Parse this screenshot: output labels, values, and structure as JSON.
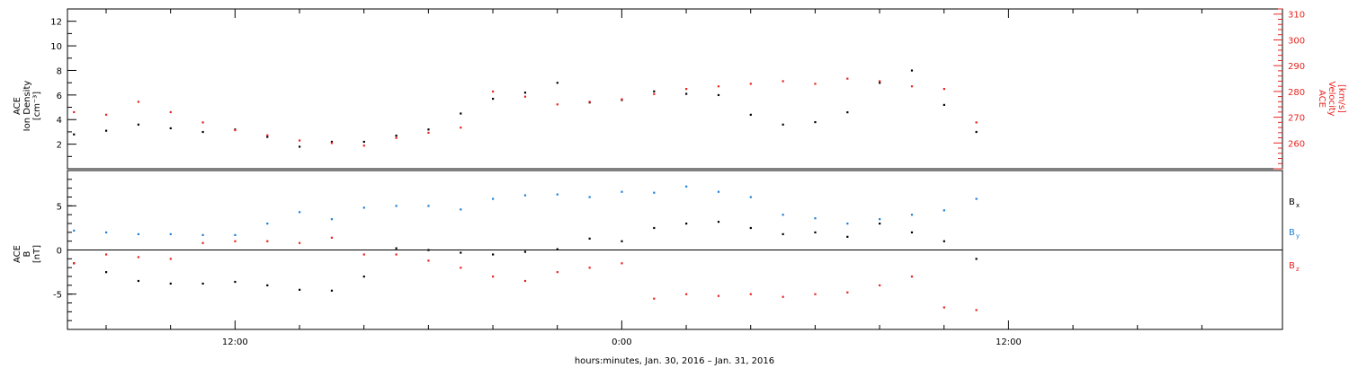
{
  "colors": {
    "black": "#000000",
    "red": "#e8231f",
    "blue": "#1e7fd6"
  },
  "x_axis": {
    "label": "hours:minutes, Jan. 30, 2016 – Jan. 31, 2016",
    "unit": "hours since Jan. 30, 2016 00:00",
    "range": [
      6.8,
      44.5
    ],
    "major_ticks": [
      {
        "x": 12,
        "label": "12:00"
      },
      {
        "x": 24,
        "label": "0:00"
      },
      {
        "x": 36,
        "label": "12:00"
      }
    ],
    "minor_ticks": [
      8,
      10,
      14,
      16,
      18,
      20,
      22,
      26,
      28,
      30,
      32,
      34,
      38,
      40,
      42
    ]
  },
  "top_panel": {
    "left_label": [
      "ACE",
      "Ion Density",
      "[cm⁻³]"
    ],
    "right_label": [
      "ACE",
      "Velocity",
      "[km/s]"
    ],
    "left_ylim": [
      0,
      13
    ],
    "left_ticks": [
      2,
      4,
      6,
      8,
      10,
      12
    ],
    "right_ylim": [
      250,
      312
    ],
    "right_ticks": [
      260,
      270,
      280,
      290,
      300,
      310
    ]
  },
  "bottom_panel": {
    "left_label": [
      "ACE",
      "B",
      "[nT]"
    ],
    "ylim": [
      -9,
      9
    ],
    "ticks": [
      -5,
      0,
      5
    ],
    "legend": [
      {
        "label": "B",
        "sub": "x",
        "color": "#000000"
      },
      {
        "label": "B",
        "sub": "y",
        "color": "#1e7fd6"
      },
      {
        "label": "B",
        "sub": "z",
        "color": "#e8231f"
      }
    ]
  },
  "chart_data": [
    {
      "type": "scatter",
      "title": "",
      "xlabel": "hours:minutes, Jan. 30, 2016 – Jan. 31, 2016",
      "ylabel": "ACE Ion Density [cm⁻³]",
      "series": [
        {
          "name": "Ion Density",
          "color": "#000000",
          "axis": "left",
          "x": [
            7,
            8,
            9,
            10,
            11,
            12,
            13,
            14,
            15,
            16,
            17,
            18,
            19,
            20,
            21,
            22,
            23,
            24,
            25,
            26,
            27,
            28,
            29,
            30,
            31,
            32,
            33,
            34,
            35
          ],
          "y": [
            2.8,
            3.1,
            3.6,
            3.3,
            3.0,
            3.2,
            2.6,
            1.8,
            2.2,
            2.2,
            2.7,
            3.2,
            4.5,
            5.7,
            6.2,
            7.0,
            5.4,
            5.6,
            6.3,
            6.1,
            6.0,
            4.4,
            3.6,
            3.8,
            4.6,
            7.0,
            8.0,
            5.2,
            3.0
          ]
        }
      ]
    },
    {
      "type": "scatter",
      "ylabel": "ACE Velocity [km/s]",
      "series": [
        {
          "name": "Velocity",
          "color": "#e8231f",
          "axis": "right",
          "x": [
            7,
            8,
            9,
            10,
            11,
            12,
            13,
            14,
            15,
            16,
            17,
            18,
            19,
            20,
            21,
            22,
            23,
            24,
            25,
            26,
            27,
            28,
            29,
            30,
            31,
            32,
            33,
            34,
            35
          ],
          "y": [
            272,
            271,
            276,
            272,
            268,
            265,
            263,
            261,
            260,
            259,
            262,
            264,
            266,
            280,
            278,
            275,
            276,
            277,
            279,
            281,
            282,
            283,
            284,
            283,
            285,
            284,
            282,
            281,
            268
          ]
        }
      ]
    },
    {
      "type": "scatter",
      "ylabel": "ACE B [nT]",
      "series": [
        {
          "name": "Bx",
          "color": "#000000",
          "x": [
            7,
            8,
            9,
            10,
            11,
            12,
            13,
            14,
            15,
            16,
            17,
            18,
            19,
            20,
            21,
            22,
            23,
            24,
            25,
            26,
            27,
            28,
            29,
            30,
            31,
            32,
            33,
            34,
            35
          ],
          "y": [
            -1.5,
            -2.5,
            -3.5,
            -3.8,
            -3.8,
            -3.6,
            -4.0,
            -4.5,
            -4.6,
            -3.0,
            0.2,
            0.0,
            -0.3,
            -0.5,
            -0.2,
            0.1,
            1.3,
            1.0,
            2.5,
            3.0,
            3.2,
            2.5,
            1.8,
            2.0,
            1.5,
            3.0,
            2.0,
            1.0,
            -1.0
          ]
        },
        {
          "name": "By",
          "color": "#1e7fd6",
          "x": [
            7,
            8,
            9,
            10,
            11,
            12,
            13,
            14,
            15,
            16,
            17,
            18,
            19,
            20,
            21,
            22,
            23,
            24,
            25,
            26,
            27,
            28,
            29,
            30,
            31,
            32,
            33,
            34,
            35
          ],
          "y": [
            2.2,
            2.0,
            1.8,
            1.8,
            1.7,
            1.7,
            3.0,
            4.3,
            3.5,
            4.8,
            5.0,
            5.0,
            4.6,
            5.8,
            6.2,
            6.3,
            6.0,
            6.6,
            6.5,
            7.2,
            6.6,
            6.0,
            4.0,
            3.6,
            3.0,
            3.5,
            4.0,
            4.5,
            5.8
          ]
        },
        {
          "name": "Bz",
          "color": "#e8231f",
          "x": [
            7,
            8,
            9,
            10,
            11,
            12,
            13,
            14,
            15,
            16,
            17,
            18,
            19,
            20,
            21,
            22,
            23,
            24,
            25,
            26,
            27,
            28,
            29,
            30,
            31,
            32,
            33,
            34,
            35
          ],
          "y": [
            -1.5,
            -0.5,
            -0.8,
            -1.0,
            0.8,
            1.0,
            1.0,
            0.8,
            1.4,
            -0.5,
            -0.5,
            -1.2,
            -2.0,
            -3.0,
            -3.5,
            -2.5,
            -2.0,
            -1.5,
            -5.5,
            -5.0,
            -5.2,
            -5.0,
            -5.3,
            -5.0,
            -4.8,
            -4.0,
            -3.0,
            -6.5,
            -6.8
          ]
        }
      ]
    }
  ]
}
